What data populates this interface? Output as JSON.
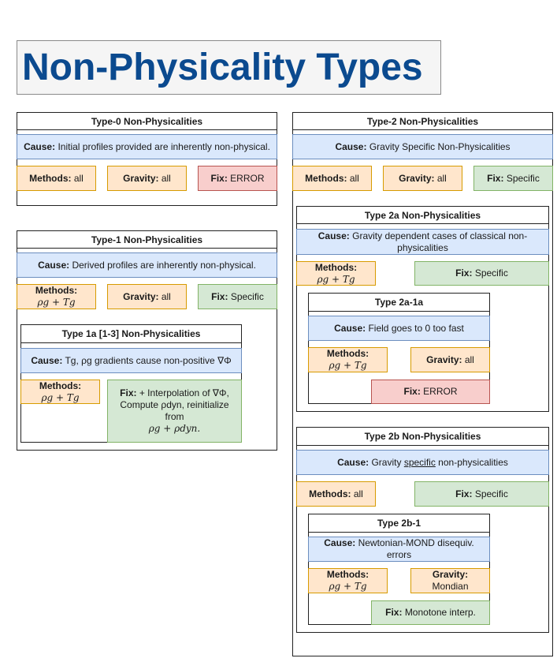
{
  "title": "Non-Physicality Types",
  "type0": {
    "header": "Type-0 Non-Physicalities",
    "cause_label": "Cause:",
    "cause_text": "Initial profiles provided are inherently non-physical.",
    "methods_label": "Methods:",
    "methods_value": "all",
    "gravity_label": "Gravity:",
    "gravity_value": "all",
    "fix_label": "Fix:",
    "fix_value": "ERROR"
  },
  "type1": {
    "header": "Type-1 Non-Physicalities",
    "cause_label": "Cause:",
    "cause_text": "Derived profiles are inherently non-physical.",
    "methods_label": "Methods:",
    "methods_value": "ρg + Tg",
    "gravity_label": "Gravity:",
    "gravity_value": "all",
    "fix_label": "Fix:",
    "fix_value": "Specific",
    "sub1a": {
      "header": "Type 1a [1-3] Non-Physicalities",
      "cause_label": "Cause:",
      "cause_text": "Tg, ρg gradients cause non-positive ∇Φ",
      "methods_label": "Methods:",
      "methods_value": "ρg + Tg",
      "fix_label": "Fix:",
      "fix_line1": "+ Interpolation of ∇Φ,",
      "fix_line2": "Compute ρdyn, reinitialize from",
      "fix_line3": "ρg + ρdyn."
    }
  },
  "type2": {
    "header": "Type-2 Non-Physicalities",
    "cause_label": "Cause:",
    "cause_text": "Gravity Specific Non-Physicalities",
    "methods_label": "Methods:",
    "methods_value": "all",
    "gravity_label": "Gravity:",
    "gravity_value": "all",
    "fix_label": "Fix:",
    "fix_value": "Specific",
    "sub2a": {
      "header": "Type 2a Non-Physicalities",
      "cause_label": "Cause:",
      "cause_text": "Gravity dependent cases of classical non-physicalities",
      "methods_label": "Methods:",
      "methods_value": "ρg + Tg",
      "fix_label": "Fix:",
      "fix_value": "Specific",
      "sub2a1a": {
        "header": "Type 2a-1a",
        "cause_label": "Cause:",
        "cause_text": "Field goes to 0 too fast",
        "methods_label": "Methods:",
        "methods_value": "ρg + Tg",
        "gravity_label": "Gravity:",
        "gravity_value": "all",
        "fix_label": "Fix:",
        "fix_value": "ERROR"
      }
    },
    "sub2b": {
      "header": "Type 2b Non-Physicalities",
      "cause_label": "Cause:",
      "cause_pre": "Gravity",
      "cause_underlined": "specific",
      "cause_post": "non-physicalities",
      "methods_label": "Methods:",
      "methods_value": "all",
      "fix_label": "Fix:",
      "fix_value": "Specific",
      "sub2b1": {
        "header": "Type 2b-1",
        "cause_label": "Cause:",
        "cause_text": "Newtonian-MOND disequiv. errors",
        "methods_label": "Methods:",
        "methods_value": "ρg + Tg",
        "gravity_label": "Gravity:",
        "gravity_value": "Mondian",
        "fix_label": "Fix:",
        "fix_value": "Monotone interp."
      }
    }
  }
}
